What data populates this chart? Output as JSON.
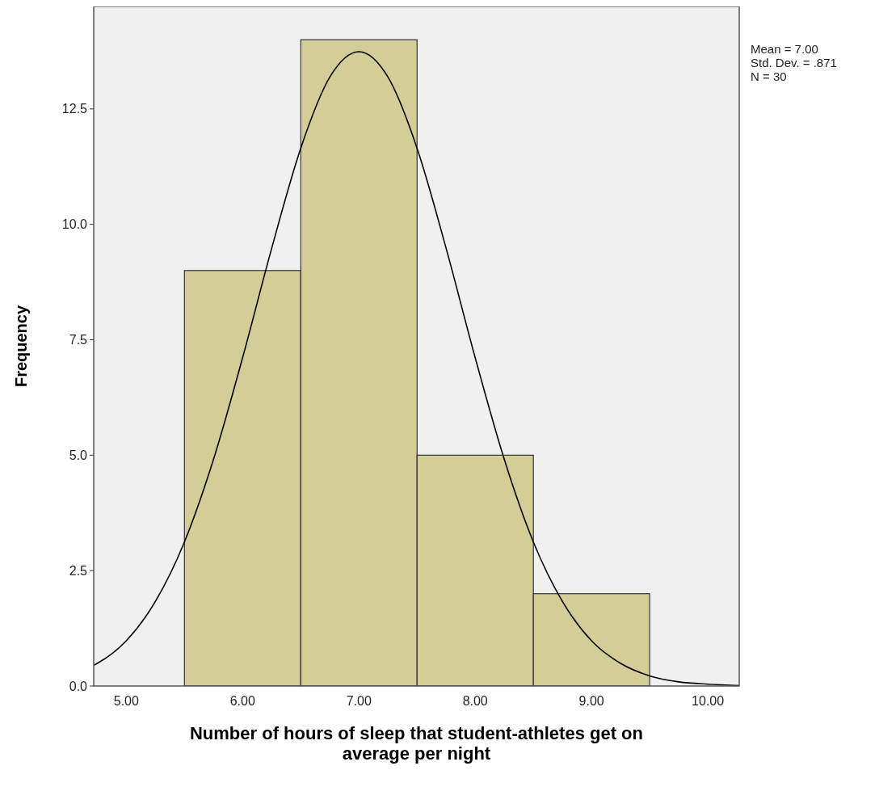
{
  "chart_data": {
    "type": "histogram",
    "xlabel": "Number of hours of sleep that student-athletes get on average per night",
    "ylabel": "Frequency",
    "annotations": [
      "Mean = 7.00",
      "Std. Dev. = .871",
      "N = 30"
    ],
    "bins": [
      5.5,
      6.5,
      7.5,
      8.5,
      9.5
    ],
    "series": [
      {
        "color": "#d3ce97",
        "values": [
          9,
          14,
          5,
          2
        ]
      },
      {
        "type": "line",
        "color": "#000000",
        "x": [
          4.72,
          4.75,
          5.0,
          5.25,
          5.5,
          5.75,
          6.0,
          6.25,
          6.5,
          6.75,
          7.0,
          7.25,
          7.5,
          7.75,
          8.0,
          8.25,
          8.5,
          8.75,
          9.0,
          9.25,
          9.5,
          9.75,
          10.0,
          10.27
        ],
        "values": [
          0.45,
          0.49,
          0.98,
          1.83,
          3.12,
          4.91,
          7.11,
          9.48,
          11.65,
          13.19,
          13.74,
          13.19,
          11.65,
          9.48,
          7.11,
          4.91,
          3.12,
          1.83,
          0.98,
          0.49,
          0.22,
          0.09,
          0.04,
          0.01
        ]
      }
    ],
    "xlim": [
      4.72,
      10.27
    ],
    "ylim": [
      0,
      14.72
    ],
    "xticks": [
      {
        "value": 5,
        "label": "5.00"
      },
      {
        "value": 6,
        "label": "6.00"
      },
      {
        "value": 7,
        "label": "7.00"
      },
      {
        "value": 8,
        "label": "8.00"
      },
      {
        "value": 9,
        "label": "9.00"
      },
      {
        "value": 10,
        "label": "10.00"
      }
    ],
    "yticks": [
      {
        "value": 0,
        "label": "0.0"
      },
      {
        "value": 2.5,
        "label": "2.5"
      },
      {
        "value": 5,
        "label": "5.0"
      },
      {
        "value": 7.5,
        "label": "7.5"
      },
      {
        "value": 10,
        "label": "10.0"
      },
      {
        "value": 12.5,
        "label": "12.5"
      }
    ],
    "grid": false,
    "marker": "none",
    "line_style": "solid"
  }
}
